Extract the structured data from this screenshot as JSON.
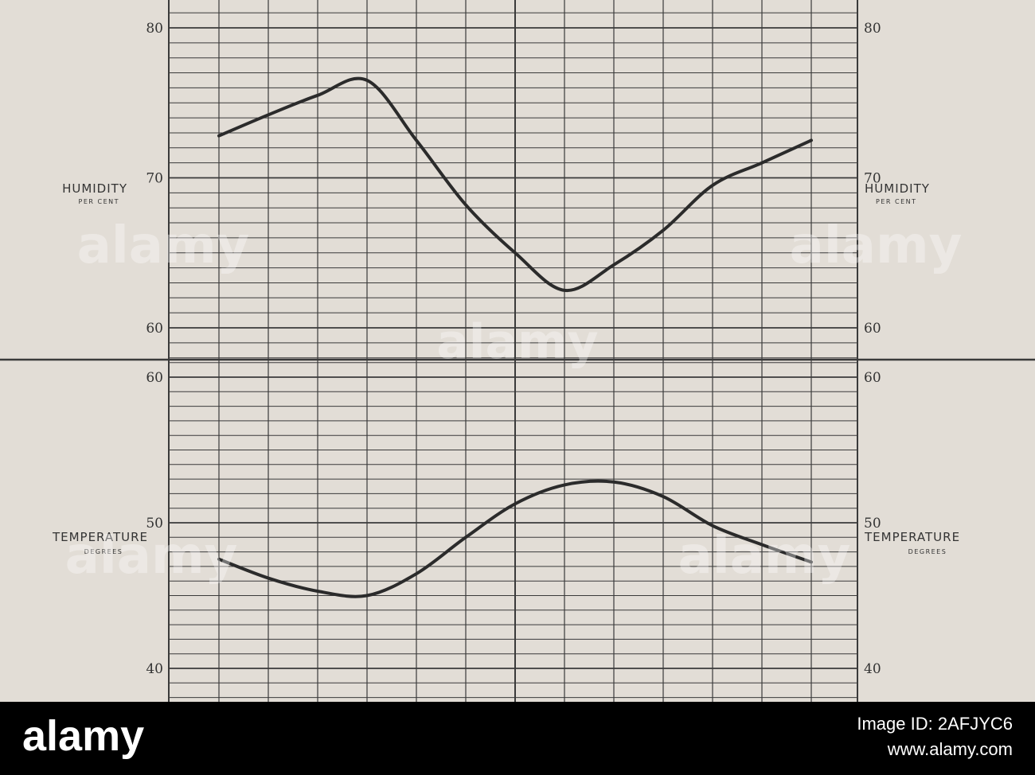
{
  "chart_data": [
    {
      "type": "line",
      "ylabel": "HUMIDITY",
      "ylabel_sub": "PER CENT",
      "ylim": [
        58,
        82
      ],
      "yticks": [
        60,
        70,
        80
      ],
      "x": [
        0,
        1,
        2,
        3,
        4,
        5,
        6,
        7,
        8,
        9,
        10,
        11,
        12
      ],
      "series": [
        {
          "values": [
            72.8,
            74.2,
            75.5,
            76.5,
            72.5,
            68.2,
            65.0,
            62.5,
            64.2,
            66.5,
            69.5,
            71.0,
            72.5
          ]
        }
      ],
      "grid": true
    },
    {
      "type": "line",
      "ylabel": "TEMPERATURE",
      "ylabel_sub": "DEGREES",
      "ylim": [
        38,
        61
      ],
      "yticks": [
        40,
        50,
        60
      ],
      "x": [
        0,
        1,
        2,
        3,
        4,
        5,
        6,
        7,
        8,
        9,
        10,
        11,
        12
      ],
      "series": [
        {
          "values": [
            47.5,
            46.2,
            45.3,
            45.0,
            46.5,
            49.0,
            51.3,
            52.6,
            52.8,
            51.8,
            49.8,
            48.5,
            47.3
          ]
        }
      ],
      "grid": true
    }
  ],
  "watermark": {
    "text": "alamy",
    "color": "#ffffff"
  },
  "stock_bar": {
    "logo": "alamy",
    "image_id": "Image ID: 2AFJYC6",
    "url": "www.alamy.com"
  },
  "colors": {
    "paper": "#e2ddd6",
    "ink": "#3a3a3a",
    "curve": "#2b2b2b",
    "bar": "#000000"
  }
}
